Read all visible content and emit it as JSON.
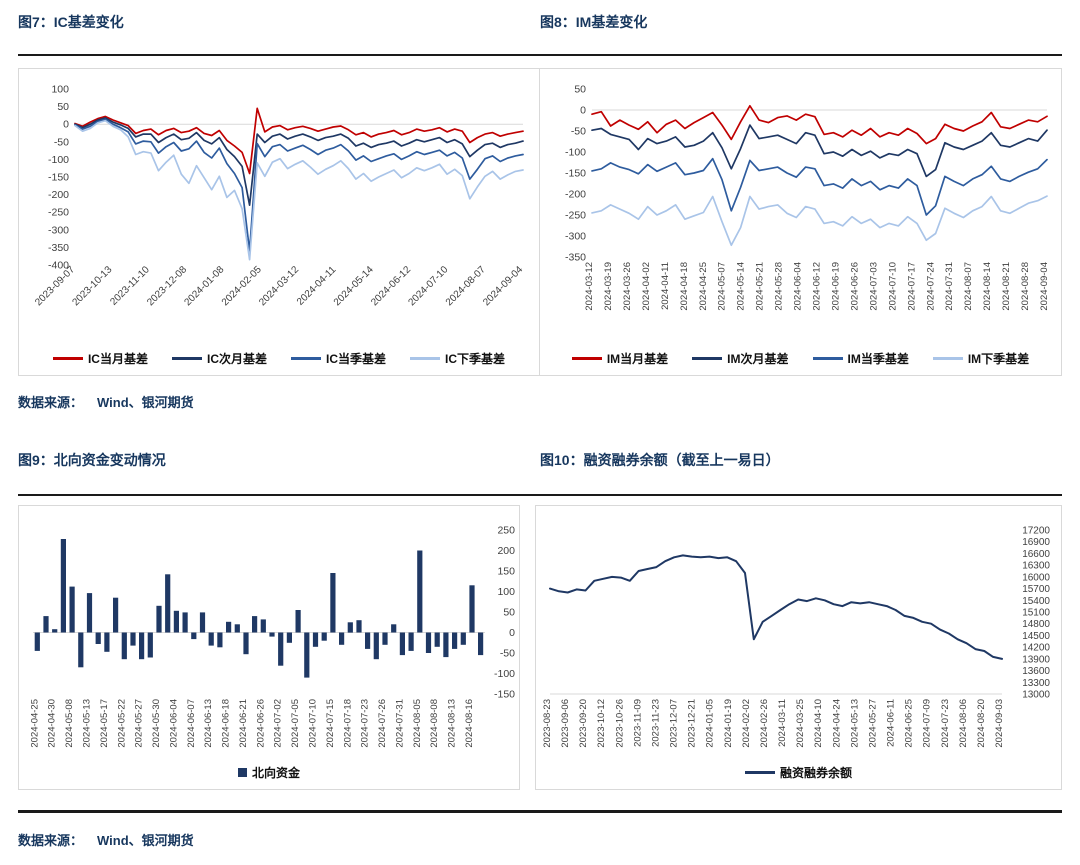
{
  "sources": [
    {
      "label": "数据来源：",
      "value": "Wind、银河期货"
    },
    {
      "label": "数据来源：",
      "value": "Wind、银河期货"
    }
  ],
  "chart_data": [
    {
      "type": "line",
      "title": "图7：IC基差变化",
      "xlabel": "",
      "ylabel": "",
      "ylim": [
        -400,
        100
      ],
      "ytick_step": 50,
      "grid": false,
      "legend_position": "bottom",
      "y_axis_side": "left",
      "x_label_rotation": -45,
      "categories": [
        "2023-09-07",
        "2023-10-13",
        "2023-11-10",
        "2023-12-08",
        "2024-01-08",
        "2024-02-05",
        "2024-03-12",
        "2024-04-11",
        "2024-05-14",
        "2024-06-12",
        "2024-07-10",
        "2024-08-07",
        "2024-09-04"
      ],
      "series": [
        {
          "name": "IC当月基差",
          "color": "#C00000",
          "values": [
            2,
            -6,
            6,
            16,
            22,
            12,
            4,
            -4,
            -26,
            -18,
            -14,
            -30,
            -18,
            -12,
            -24,
            -20,
            -10,
            -26,
            -32,
            -18,
            -46,
            -62,
            -80,
            -140,
            45,
            -22,
            -8,
            -4,
            -16,
            -10,
            -6,
            -12,
            -20,
            -14,
            -8,
            -5,
            -16,
            -30,
            -24,
            -36,
            -28,
            -24,
            -18,
            -30,
            -24,
            -14,
            -20,
            -16,
            -10,
            -22,
            -14,
            -20,
            -52,
            -38,
            -28,
            -24,
            -34,
            -28,
            -24,
            -20
          ]
        },
        {
          "name": "IC次月基差",
          "color": "#1F3864",
          "values": [
            0,
            -10,
            0,
            12,
            18,
            6,
            -2,
            -12,
            -36,
            -28,
            -28,
            -52,
            -38,
            -28,
            -44,
            -40,
            -24,
            -46,
            -56,
            -38,
            -72,
            -92,
            -120,
            -230,
            -28,
            -52,
            -34,
            -28,
            -42,
            -34,
            -28,
            -36,
            -46,
            -38,
            -34,
            -28,
            -40,
            -62,
            -54,
            -66,
            -58,
            -54,
            -48,
            -62,
            -54,
            -44,
            -50,
            -44,
            -38,
            -52,
            -44,
            -56,
            -92,
            -74,
            -58,
            -54,
            -66,
            -58,
            -54,
            -48
          ]
        },
        {
          "name": "IC当季基差",
          "color": "#2E5C9E",
          "values": [
            -2,
            -14,
            -6,
            8,
            14,
            0,
            -10,
            -22,
            -56,
            -48,
            -50,
            -82,
            -64,
            -52,
            -76,
            -70,
            -48,
            -80,
            -96,
            -68,
            -112,
            -140,
            -180,
            -360,
            -55,
            -92,
            -64,
            -58,
            -76,
            -68,
            -60,
            -72,
            -86,
            -74,
            -68,
            -58,
            -76,
            -102,
            -90,
            -106,
            -98,
            -90,
            -84,
            -100,
            -90,
            -78,
            -86,
            -80,
            -74,
            -90,
            -80,
            -96,
            -156,
            -128,
            -98,
            -90,
            -106,
            -96,
            -90,
            -86
          ]
        },
        {
          "name": "IC下季基差",
          "color": "#A9C4E8",
          "values": [
            -4,
            -20,
            -12,
            4,
            10,
            -6,
            -16,
            -36,
            -86,
            -78,
            -82,
            -132,
            -108,
            -88,
            -142,
            -168,
            -118,
            -152,
            -186,
            -148,
            -208,
            -188,
            -240,
            -385,
            -110,
            -148,
            -108,
            -98,
            -126,
            -114,
            -104,
            -122,
            -142,
            -128,
            -118,
            -104,
            -126,
            -156,
            -140,
            -162,
            -150,
            -140,
            -130,
            -152,
            -140,
            -124,
            -132,
            -124,
            -114,
            -142,
            -128,
            -146,
            -212,
            -178,
            -148,
            -134,
            -156,
            -144,
            -134,
            -130
          ]
        }
      ]
    },
    {
      "type": "line",
      "title": "图8：IM基差变化",
      "xlabel": "",
      "ylabel": "",
      "ylim": [
        -350,
        50
      ],
      "ytick_step": 50,
      "grid": false,
      "legend_position": "bottom",
      "y_axis_side": "left",
      "x_label_rotation": -90,
      "categories": [
        "2024-03-12",
        "2024-03-19",
        "2024-03-26",
        "2024-04-02",
        "2024-04-11",
        "2024-04-18",
        "2024-04-25",
        "2024-05-07",
        "2024-05-14",
        "2024-05-21",
        "2024-05-28",
        "2024-06-04",
        "2024-06-12",
        "2024-06-19",
        "2024-06-26",
        "2024-07-03",
        "2024-07-10",
        "2024-07-17",
        "2024-07-24",
        "2024-07-31",
        "2024-08-07",
        "2024-08-14",
        "2024-08-21",
        "2024-08-28",
        "2024-09-04"
      ],
      "series": [
        {
          "name": "IM当月基差",
          "color": "#C00000",
          "values": [
            -10,
            -4,
            -38,
            -24,
            -36,
            -46,
            -28,
            -54,
            -34,
            -24,
            -44,
            -30,
            -18,
            -6,
            -36,
            -70,
            -28,
            10,
            -24,
            -30,
            -18,
            -14,
            -24,
            -10,
            -16,
            -58,
            -54,
            -64,
            -48,
            -60,
            -44,
            -64,
            -54,
            -60,
            -44,
            -56,
            -80,
            -68,
            -34,
            -44,
            -50,
            -38,
            -28,
            -6,
            -40,
            -44,
            -34,
            -24,
            -28,
            -15
          ]
        },
        {
          "name": "IM次月基差",
          "color": "#1F3864",
          "values": [
            -48,
            -44,
            -58,
            -64,
            -70,
            -94,
            -68,
            -80,
            -74,
            -64,
            -88,
            -84,
            -74,
            -54,
            -90,
            -140,
            -92,
            -36,
            -68,
            -64,
            -60,
            -70,
            -80,
            -54,
            -60,
            -104,
            -100,
            -110,
            -94,
            -108,
            -98,
            -114,
            -104,
            -108,
            -94,
            -104,
            -158,
            -142,
            -78,
            -88,
            -94,
            -84,
            -74,
            -54,
            -84,
            -88,
            -78,
            -68,
            -74,
            -48
          ]
        },
        {
          "name": "IM当季基差",
          "color": "#2E5C9E",
          "values": [
            -145,
            -140,
            -126,
            -136,
            -142,
            -152,
            -130,
            -146,
            -136,
            -126,
            -154,
            -150,
            -144,
            -116,
            -166,
            -240,
            -184,
            -120,
            -144,
            -140,
            -136,
            -150,
            -160,
            -136,
            -140,
            -180,
            -176,
            -186,
            -164,
            -180,
            -170,
            -190,
            -180,
            -186,
            -164,
            -180,
            -250,
            -228,
            -158,
            -170,
            -180,
            -164,
            -154,
            -134,
            -164,
            -170,
            -158,
            -148,
            -140,
            -118
          ]
        },
        {
          "name": "IM下季基差",
          "color": "#A9C4E8",
          "values": [
            -245,
            -240,
            -226,
            -236,
            -246,
            -260,
            -230,
            -250,
            -240,
            -226,
            -260,
            -252,
            -244,
            -206,
            -266,
            -322,
            -280,
            -206,
            -236,
            -230,
            -226,
            -246,
            -256,
            -230,
            -236,
            -270,
            -266,
            -276,
            -254,
            -270,
            -260,
            -280,
            -270,
            -276,
            -254,
            -270,
            -310,
            -294,
            -234,
            -246,
            -256,
            -240,
            -230,
            -206,
            -240,
            -246,
            -234,
            -222,
            -216,
            -205
          ]
        }
      ]
    },
    {
      "type": "bar",
      "title": "图9：北向资金变动情况",
      "xlabel": "",
      "ylabel": "",
      "ylim": [
        -150,
        250
      ],
      "ytick_step": 50,
      "grid": false,
      "legend_position": "bottom",
      "y_axis_side": "right",
      "x_label_rotation": -90,
      "categories": [
        "2024-04-25",
        "2024-04-30",
        "2024-05-08",
        "2024-05-13",
        "2024-05-17",
        "2024-05-22",
        "2024-05-27",
        "2024-05-30",
        "2024-06-04",
        "2024-06-07",
        "2024-06-13",
        "2024-06-18",
        "2024-06-21",
        "2024-06-26",
        "2024-07-02",
        "2024-07-05",
        "2024-07-10",
        "2024-07-15",
        "2024-07-18",
        "2024-07-23",
        "2024-07-26",
        "2024-07-31",
        "2024-08-05",
        "2024-08-08",
        "2024-08-13",
        "2024-08-16"
      ],
      "series": [
        {
          "name": "北向资金",
          "color": "#1F3864",
          "values": [
            -45,
            40,
            8,
            228,
            112,
            -85,
            96,
            -28,
            -47,
            85,
            -65,
            -32,
            -65,
            -61,
            65,
            142,
            53,
            49,
            -16,
            49,
            -32,
            -36,
            26,
            20,
            -53,
            40,
            32,
            -10,
            -81,
            -25,
            55,
            -110,
            -35,
            -20,
            145,
            -30,
            25,
            30,
            -40,
            -65,
            -30,
            20,
            -55,
            -45,
            200,
            -50,
            -35,
            -60,
            -40,
            -30,
            115,
            -55
          ]
        }
      ]
    },
    {
      "type": "line",
      "title": "图10：融资融券余额（截至上一易日）",
      "xlabel": "",
      "ylabel": "",
      "ylim": [
        13000,
        17200
      ],
      "ytick_step": 300,
      "grid": false,
      "legend_position": "bottom",
      "y_axis_side": "right",
      "x_label_rotation": -90,
      "categories": [
        "2023-08-23",
        "2023-09-06",
        "2023-09-20",
        "2023-10-12",
        "2023-10-26",
        "2023-11-09",
        "2023-11-23",
        "2023-12-07",
        "2023-12-21",
        "2024-01-05",
        "2024-01-19",
        "2024-02-02",
        "2024-02-26",
        "2024-03-11",
        "2024-03-25",
        "2024-04-10",
        "2024-04-24",
        "2024-05-13",
        "2024-05-27",
        "2024-06-11",
        "2024-06-25",
        "2024-07-09",
        "2024-07-23",
        "2024-08-06",
        "2024-08-20",
        "2024-09-03"
      ],
      "series": [
        {
          "name": "融资融券余额",
          "color": "#1F3864",
          "values": [
            15700,
            15630,
            15600,
            15680,
            15650,
            15900,
            15950,
            16000,
            15980,
            15900,
            16150,
            16200,
            16250,
            16400,
            16500,
            16550,
            16520,
            16500,
            16520,
            16480,
            16500,
            16400,
            16100,
            14400,
            14850,
            15000,
            15150,
            15300,
            15420,
            15380,
            15450,
            15400,
            15300,
            15250,
            15350,
            15320,
            15350,
            15300,
            15250,
            15150,
            15000,
            14950,
            14850,
            14800,
            14650,
            14550,
            14400,
            14300,
            14150,
            14100,
            13950,
            13900
          ]
        }
      ]
    }
  ]
}
